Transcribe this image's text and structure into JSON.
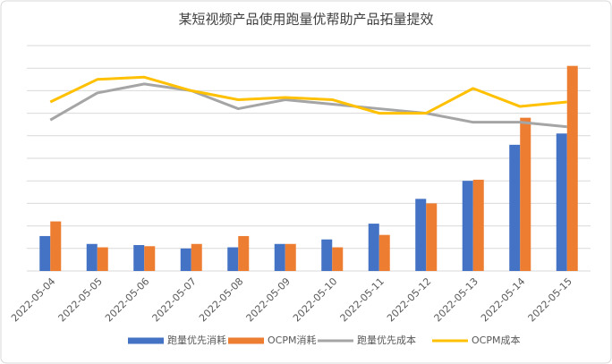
{
  "chart_data": {
    "type": "combo",
    "title": "某短视频产品使用跑量优帮助产品拓量提效",
    "categories": [
      "2022-05-04",
      "2022-05-05",
      "2022-05-06",
      "2022-05-07",
      "2022-05-08",
      "2022-05-09",
      "2022-05-10",
      "2022-05-11",
      "2022-05-12",
      "2022-05-13",
      "2022-05-14",
      "2022-05-15"
    ],
    "series": [
      {
        "name": "跑量优先消耗",
        "type": "bar",
        "color": "#4472c4",
        "values": [
          1.55,
          1.2,
          1.15,
          1.0,
          1.05,
          1.2,
          1.4,
          2.1,
          3.2,
          4.0,
          5.6,
          6.1
        ]
      },
      {
        "name": "OCPM消耗",
        "type": "bar",
        "color": "#ed7d31",
        "values": [
          2.2,
          1.05,
          1.1,
          1.2,
          1.55,
          1.2,
          1.05,
          1.6,
          3.0,
          4.05,
          6.8,
          9.1
        ]
      },
      {
        "name": "跑量优先成本",
        "type": "line",
        "color": "#a5a5a5",
        "values": [
          6.7,
          7.9,
          8.3,
          8.0,
          7.2,
          7.6,
          7.4,
          7.2,
          7.0,
          6.6,
          6.6,
          6.4
        ]
      },
      {
        "name": "OCPM成本",
        "type": "line",
        "color": "#ffc000",
        "values": [
          7.5,
          8.5,
          8.6,
          8.0,
          7.6,
          7.7,
          7.6,
          7.0,
          7.0,
          8.1,
          7.3,
          7.5
        ]
      }
    ],
    "ylim": [
      0,
      10
    ],
    "grid_lines": [
      0,
      1,
      2,
      3,
      4,
      5,
      6,
      7,
      8,
      9,
      10
    ],
    "legend": "bottom"
  }
}
